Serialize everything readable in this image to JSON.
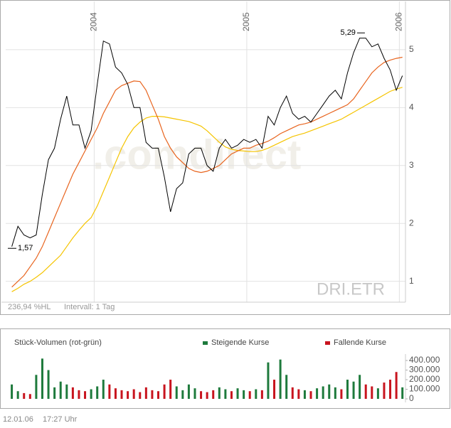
{
  "chart_data": [
    {
      "type": "line",
      "symbol": "DRI.ETR",
      "watermark": ".comdirect",
      "range_info": "236,94 %HL",
      "interval": "Intervall: 1 Tag",
      "x": [
        2003.46,
        2003.5,
        2003.54,
        2003.58,
        2003.62,
        2003.66,
        2003.7,
        2003.74,
        2003.78,
        2003.82,
        2003.86,
        2003.9,
        2003.94,
        2003.98,
        2004.02,
        2004.06,
        2004.1,
        2004.14,
        2004.18,
        2004.22,
        2004.26,
        2004.3,
        2004.34,
        2004.38,
        2004.42,
        2004.46,
        2004.5,
        2004.54,
        2004.58,
        2004.62,
        2004.66,
        2004.7,
        2004.74,
        2004.78,
        2004.82,
        2004.86,
        2004.9,
        2004.94,
        2004.98,
        2005.02,
        2005.06,
        2005.1,
        2005.14,
        2005.18,
        2005.22,
        2005.26,
        2005.3,
        2005.34,
        2005.38,
        2005.42,
        2005.46,
        2005.5,
        2005.54,
        2005.58,
        2005.62,
        2005.66,
        2005.7,
        2005.74,
        2005.78,
        2005.82,
        2005.86,
        2005.9,
        2005.94,
        2005.98,
        2006.02
      ],
      "series": [
        {
          "color": "#000000",
          "values": [
            1.6,
            1.95,
            1.8,
            1.75,
            1.8,
            2.5,
            3.1,
            3.3,
            3.8,
            4.2,
            3.7,
            3.7,
            3.3,
            3.6,
            4.4,
            5.15,
            5.1,
            4.7,
            4.6,
            4.4,
            4.0,
            4.0,
            3.4,
            3.3,
            3.3,
            2.8,
            2.2,
            2.6,
            2.7,
            3.2,
            3.3,
            3.3,
            3.0,
            2.9,
            3.3,
            3.45,
            3.3,
            3.35,
            3.45,
            3.4,
            3.45,
            3.3,
            3.85,
            3.7,
            4.0,
            4.2,
            3.9,
            3.8,
            3.85,
            3.75,
            3.9,
            4.05,
            4.2,
            4.3,
            4.15,
            4.6,
            4.95,
            5.2,
            5.2,
            5.05,
            5.1,
            4.85,
            4.65,
            4.3,
            4.55
          ]
        },
        {
          "color": "#e8641e",
          "values": [
            0.9,
            1.0,
            1.1,
            1.25,
            1.4,
            1.6,
            1.85,
            2.1,
            2.35,
            2.6,
            2.85,
            3.05,
            3.25,
            3.45,
            3.65,
            3.9,
            4.1,
            4.3,
            4.38,
            4.42,
            4.46,
            4.45,
            4.3,
            4.05,
            3.8,
            3.5,
            3.3,
            3.15,
            3.05,
            2.95,
            2.9,
            2.88,
            2.9,
            2.95,
            3.0,
            3.1,
            3.2,
            3.25,
            3.3,
            3.3,
            3.35,
            3.38,
            3.42,
            3.48,
            3.55,
            3.6,
            3.65,
            3.7,
            3.72,
            3.75,
            3.8,
            3.85,
            3.9,
            3.95,
            4.0,
            4.05,
            4.15,
            4.3,
            4.45,
            4.6,
            4.7,
            4.78,
            4.82,
            4.85,
            4.87
          ]
        },
        {
          "color": "#f5c400",
          "values": [
            0.82,
            0.88,
            0.95,
            1.0,
            1.07,
            1.15,
            1.25,
            1.35,
            1.45,
            1.6,
            1.75,
            1.88,
            2.0,
            2.1,
            2.3,
            2.55,
            2.8,
            3.05,
            3.3,
            3.5,
            3.65,
            3.75,
            3.82,
            3.85,
            3.85,
            3.84,
            3.82,
            3.8,
            3.78,
            3.76,
            3.72,
            3.68,
            3.6,
            3.5,
            3.4,
            3.32,
            3.28,
            3.26,
            3.25,
            3.24,
            3.24,
            3.26,
            3.3,
            3.35,
            3.4,
            3.45,
            3.5,
            3.53,
            3.56,
            3.6,
            3.64,
            3.68,
            3.72,
            3.76,
            3.8,
            3.86,
            3.92,
            3.98,
            4.04,
            4.1,
            4.16,
            4.22,
            4.28,
            4.32,
            4.35
          ]
        }
      ],
      "high": {
        "x": 2005.76,
        "value": 5.29,
        "label": "5,29"
      },
      "low": {
        "x": 2003.49,
        "value": 1.57,
        "label": "1,57"
      },
      "xlim": [
        2003.42,
        2006.04
      ],
      "xticks": [
        2004,
        2005,
        2006
      ],
      "ylim": [
        0.64,
        5.76
      ],
      "yticks": [
        1,
        2,
        3,
        4,
        5
      ],
      "grid": true
    },
    {
      "type": "bar",
      "title": "Stück-Volumen (rot-grün)",
      "series": [
        {
          "name": "Steigende Kurse",
          "color": "#1e7a3c",
          "values": [
            150000,
            80000,
            null,
            null,
            250000,
            420000,
            300000,
            120000,
            180000,
            150000,
            null,
            null,
            null,
            100000,
            130000,
            200000,
            null,
            null,
            null,
            null,
            null,
            null,
            null,
            null,
            null,
            null,
            null,
            130000,
            90000,
            150000,
            110000,
            null,
            null,
            null,
            120000,
            100000,
            null,
            110000,
            90000,
            null,
            100000,
            null,
            380000,
            null,
            410000,
            250000,
            null,
            null,
            90000,
            null,
            110000,
            130000,
            150000,
            120000,
            null,
            200000,
            180000,
            250000,
            null,
            null,
            110000,
            null,
            null,
            null,
            120000
          ]
        },
        {
          "name": "Fallende Kurse",
          "color": "#c8141e",
          "values": [
            null,
            null,
            60000,
            50000,
            null,
            null,
            null,
            null,
            null,
            null,
            120000,
            90000,
            80000,
            null,
            null,
            null,
            150000,
            110000,
            90000,
            80000,
            100000,
            70000,
            120000,
            90000,
            80000,
            150000,
            200000,
            null,
            null,
            null,
            null,
            80000,
            70000,
            90000,
            null,
            null,
            80000,
            null,
            null,
            80000,
            null,
            90000,
            null,
            200000,
            null,
            null,
            120000,
            100000,
            null,
            80000,
            null,
            null,
            null,
            null,
            100000,
            null,
            null,
            null,
            150000,
            130000,
            null,
            170000,
            200000,
            280000,
            null
          ]
        }
      ],
      "ylim": [
        0,
        430000
      ],
      "yticks": [
        0,
        {
          "value": 100000,
          "label": "100.000"
        },
        {
          "value": 200000,
          "label": "200.000"
        },
        {
          "value": 300000,
          "label": "300.000"
        },
        {
          "value": 400000,
          "label": "400.000"
        }
      ]
    }
  ],
  "footer": {
    "date": "12.01.06",
    "time": "17:27 Uhr"
  }
}
